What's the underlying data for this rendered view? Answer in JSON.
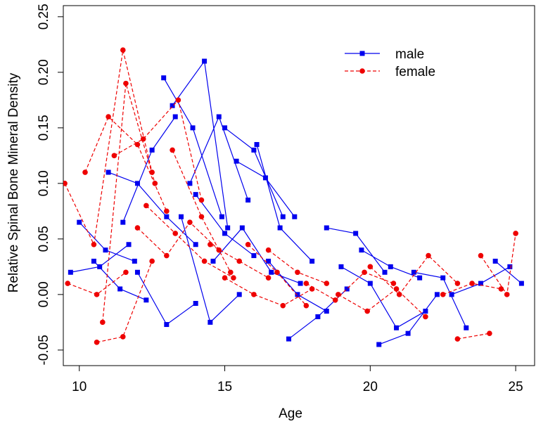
{
  "chart_data": {
    "type": "line",
    "x_label": "Age",
    "y_label": "Relative Spinal Bone Mineral Density",
    "xlim": [
      9.45,
      25.65
    ],
    "ylim": [
      -0.064,
      0.26
    ],
    "xticks": [
      10,
      15,
      20,
      25
    ],
    "yticks": [
      {
        "value": -0.05,
        "label": "-0.05"
      },
      {
        "value": 0,
        "label": "0.00"
      },
      {
        "value": 0.05,
        "label": "0.05"
      },
      {
        "value": 0.1,
        "label": "0.10"
      },
      {
        "value": 0.15,
        "label": "0.15"
      },
      {
        "value": 0.2,
        "label": "0.20"
      },
      {
        "value": 0.25,
        "label": "0.25"
      }
    ],
    "legend": "top right",
    "series": [
      {
        "name": "male",
        "color": "#0000ee",
        "line_style": "solid",
        "marker": "square",
        "x": [
          10.0,
          10.9,
          11.9,
          null,
          11.5,
          12.5,
          13.3,
          null,
          12.9,
          13.9,
          14.9,
          null,
          13.2,
          14.3,
          15.1,
          null,
          13.8,
          14.8,
          15.8,
          null,
          15.0,
          16.0,
          17.0,
          null,
          15.4,
          16.4,
          17.4,
          null,
          16.1,
          16.9,
          18.0,
          null,
          14.6,
          15.6,
          16.6,
          17.6,
          null,
          12.0,
          13.0,
          14.0,
          null,
          10.5,
          11.4,
          12.3,
          null,
          17.2,
          18.2,
          19.2,
          null,
          18.5,
          19.5,
          20.5,
          null,
          19.0,
          20.0,
          20.9,
          21.9,
          null,
          20.3,
          21.3,
          22.3,
          null,
          21.5,
          22.5,
          23.3,
          null,
          22.8,
          23.8,
          24.8,
          null,
          24.3,
          25.2,
          null,
          16.5,
          17.5,
          18.5,
          null,
          11.0,
          12.0,
          13.0,
          14.0,
          null,
          9.7,
          10.7,
          11.7,
          null,
          14.0,
          15.0,
          16.0,
          null,
          19.7,
          20.7,
          21.7,
          null,
          13.5,
          14.5,
          15.5
        ],
        "values": [
          0.065,
          0.04,
          0.03,
          null,
          0.065,
          0.13,
          0.16,
          null,
          0.195,
          0.15,
          0.07,
          null,
          0.17,
          0.21,
          0.06,
          null,
          0.1,
          0.16,
          0.085,
          null,
          0.15,
          0.13,
          0.07,
          null,
          0.12,
          0.105,
          0.07,
          null,
          0.135,
          0.06,
          0.03,
          null,
          0.03,
          0.06,
          0.02,
          0.01,
          null,
          0.02,
          -0.027,
          -0.008,
          null,
          0.03,
          0.005,
          -0.005,
          null,
          -0.04,
          -0.02,
          0.005,
          null,
          0.06,
          0.055,
          0.02,
          null,
          0.025,
          0.01,
          -0.03,
          -0.015,
          null,
          -0.045,
          -0.035,
          0.0,
          null,
          0.02,
          0.015,
          -0.03,
          null,
          0.0,
          0.01,
          0.025,
          null,
          0.03,
          0.01,
          null,
          0.03,
          0.0,
          -0.015,
          null,
          0.11,
          0.1,
          0.07,
          0.045,
          null,
          0.02,
          0.025,
          0.045,
          null,
          0.09,
          0.055,
          0.035,
          null,
          0.04,
          0.025,
          0.015,
          null,
          0.07,
          -0.025,
          0.0
        ]
      },
      {
        "name": "female",
        "color": "#ee0000",
        "line_style": "dashed",
        "marker": "circle",
        "x": [
          9.5,
          10.5,
          11.5,
          12.5,
          null,
          10.2,
          11.0,
          12.0,
          13.0,
          null,
          10.8,
          11.6,
          12.6,
          null,
          11.2,
          12.2,
          13.4,
          14.2,
          null,
          12.0,
          13.0,
          13.8,
          14.8,
          null,
          10.6,
          11.5,
          12.5,
          null,
          13.2,
          14.2,
          15.2,
          null,
          14.5,
          15.5,
          16.5,
          null,
          15.0,
          16.0,
          17.0,
          18.0,
          null,
          16.5,
          17.5,
          18.5,
          null,
          17.8,
          18.8,
          19.8,
          20.8,
          null,
          20.0,
          21.0,
          22.0,
          23.0,
          null,
          22.5,
          23.5,
          24.5,
          null,
          23.8,
          24.7,
          25.0,
          null,
          23.0,
          24.1,
          null,
          12.3,
          13.3,
          14.3,
          15.3,
          null,
          9.6,
          10.6,
          11.6,
          null,
          15.8,
          16.8,
          17.8,
          null,
          18.9,
          19.9,
          20.9,
          21.9
        ],
        "values": [
          0.1,
          0.045,
          0.22,
          0.11,
          null,
          0.11,
          0.16,
          0.135,
          0.075,
          null,
          -0.025,
          0.19,
          0.1,
          null,
          0.125,
          0.14,
          0.175,
          0.085,
          null,
          0.06,
          0.035,
          0.065,
          0.04,
          null,
          -0.043,
          -0.038,
          0.03,
          null,
          0.13,
          0.07,
          0.02,
          null,
          0.045,
          0.03,
          0.015,
          null,
          0.015,
          0.0,
          -0.01,
          0.005,
          null,
          0.04,
          0.02,
          0.01,
          null,
          0.01,
          -0.005,
          0.02,
          0.01,
          null,
          0.025,
          0.0,
          0.035,
          0.01,
          null,
          0.0,
          0.01,
          0.005,
          null,
          0.035,
          0.0,
          0.055,
          null,
          -0.04,
          -0.035,
          null,
          0.08,
          0.055,
          0.03,
          0.015,
          null,
          0.01,
          0.0,
          0.02,
          null,
          0.045,
          0.02,
          -0.01,
          null,
          0.0,
          -0.015,
          0.005,
          -0.02
        ]
      }
    ]
  }
}
